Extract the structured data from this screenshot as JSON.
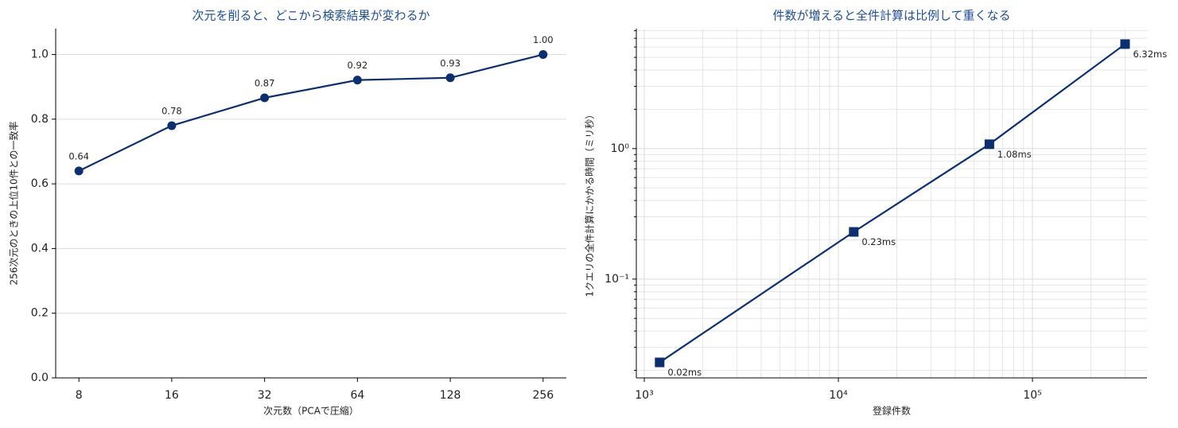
{
  "chart_data": [
    {
      "type": "line",
      "title": "次元を削ると、どこから検索結果が変わるか",
      "xlabel": "次元数（PCAで圧縮）",
      "ylabel": "256次元のときの上位10件との一致率",
      "categories": [
        "8",
        "16",
        "32",
        "64",
        "128",
        "256"
      ],
      "values": [
        0.64,
        0.78,
        0.866,
        0.921,
        0.928,
        1.0
      ],
      "value_labels": [
        "0.64",
        "0.78",
        "0.87",
        "0.92",
        "0.93",
        "1.00"
      ],
      "color": "#0d2f6e",
      "marker": "circle",
      "value_label_position": "above",
      "ylim": [
        0,
        1.08
      ],
      "yticks": [
        {
          "value": 0,
          "label": "0.0"
        },
        0.2,
        0.4,
        0.6,
        0.8,
        {
          "value": 1,
          "label": "1.0"
        }
      ],
      "grid": true
    },
    {
      "type": "line",
      "title": "件数が増えると全件計算は比例して重くなる",
      "xlabel": "登録件数",
      "ylabel": "1クエリの全件計算にかかる時間（ミリ秒）",
      "x": [
        1200,
        12000,
        60000,
        300000
      ],
      "values": [
        0.023,
        0.23,
        1.08,
        6.32
      ],
      "value_labels": [
        "0.02ms",
        "0.23ms",
        "1.08ms",
        "6.32ms"
      ],
      "color": "#0d2f6e",
      "marker": "square",
      "value_label_position": "below-right",
      "log_x": true,
      "log_y": true,
      "xlim": [
        910,
        389000
      ],
      "ylim": [
        0.0175,
        8.3
      ],
      "xticks": [
        {
          "value": 1000,
          "label": "10³"
        },
        {
          "value": 10000,
          "label": "10⁴"
        },
        {
          "value": 100000,
          "label": "10⁵"
        }
      ],
      "yticks": [
        {
          "value": 0.1,
          "label": "10⁻¹"
        },
        {
          "value": 1,
          "label": "10⁰"
        }
      ],
      "grid": true,
      "minor_grid": true
    }
  ]
}
